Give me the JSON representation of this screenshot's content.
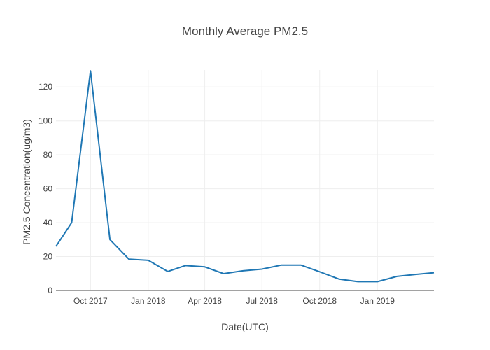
{
  "chart_data": {
    "type": "line",
    "title": "Monthly Average PM2.5",
    "xlabel": "Date(UTC)",
    "ylabel": "PM2.5 Concentration(ug/m3)",
    "ylim": [
      0,
      130
    ],
    "xlim": [
      "2017-08-07",
      "2019-04-01"
    ],
    "grid": true,
    "y_ticks": [
      0,
      20,
      40,
      60,
      80,
      100,
      120
    ],
    "y_tick_labels": [
      "0",
      "20",
      "40",
      "60",
      "80",
      "100",
      "120"
    ],
    "x_ticks": [
      "2017-10-01",
      "2018-01-01",
      "2018-04-01",
      "2018-07-01",
      "2018-10-01",
      "2019-01-01"
    ],
    "x_tick_labels": [
      "Oct 2017",
      "Jan 2018",
      "Apr 2018",
      "Jul 2018",
      "Oct 2018",
      "Jan 2019"
    ],
    "series": [
      {
        "color": "#1f77b4",
        "x": [
          "2017-08-07",
          "2017-09-01",
          "2017-10-01",
          "2017-11-01",
          "2017-12-01",
          "2018-01-01",
          "2018-02-01",
          "2018-03-01",
          "2018-04-01",
          "2018-05-01",
          "2018-06-01",
          "2018-07-01",
          "2018-08-01",
          "2018-09-01",
          "2018-10-01",
          "2018-11-01",
          "2018-12-01",
          "2019-01-01",
          "2019-02-01",
          "2019-03-01",
          "2019-04-01"
        ],
        "y": [
          26,
          40,
          129.5,
          30,
          18.5,
          17.8,
          11.2,
          14.7,
          13.9,
          9.9,
          11.6,
          12.6,
          15,
          15,
          11,
          6.7,
          5.2,
          5.2,
          8.3,
          9.4,
          10.5
        ]
      }
    ]
  }
}
